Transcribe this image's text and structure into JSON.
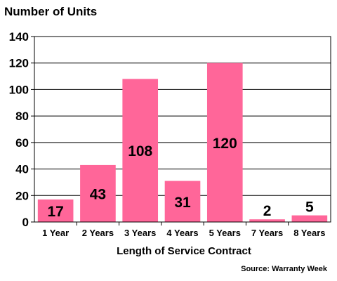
{
  "chart_data": {
    "type": "bar",
    "title": "Number of Units",
    "categories": [
      "1 Year",
      "2 Years",
      "3 Years",
      "4 Years",
      "5 Years",
      "7 Years",
      "8 Years"
    ],
    "values": [
      17,
      43,
      108,
      31,
      120,
      2,
      5
    ],
    "data_labels": [
      "17",
      "43",
      "108",
      "31",
      "120",
      "2",
      "5"
    ],
    "xlabel": "Length of Service Contract",
    "ylabel": "",
    "ylim": [
      0,
      140
    ],
    "yticks": [
      0,
      20,
      40,
      60,
      80,
      100,
      120,
      140
    ],
    "grid": true,
    "legend": "none",
    "source": "Source: Warranty Week",
    "colors": {
      "bar": "#ff6699",
      "grid": "#000000",
      "axis": "#000000",
      "background": "#ffffff"
    }
  }
}
